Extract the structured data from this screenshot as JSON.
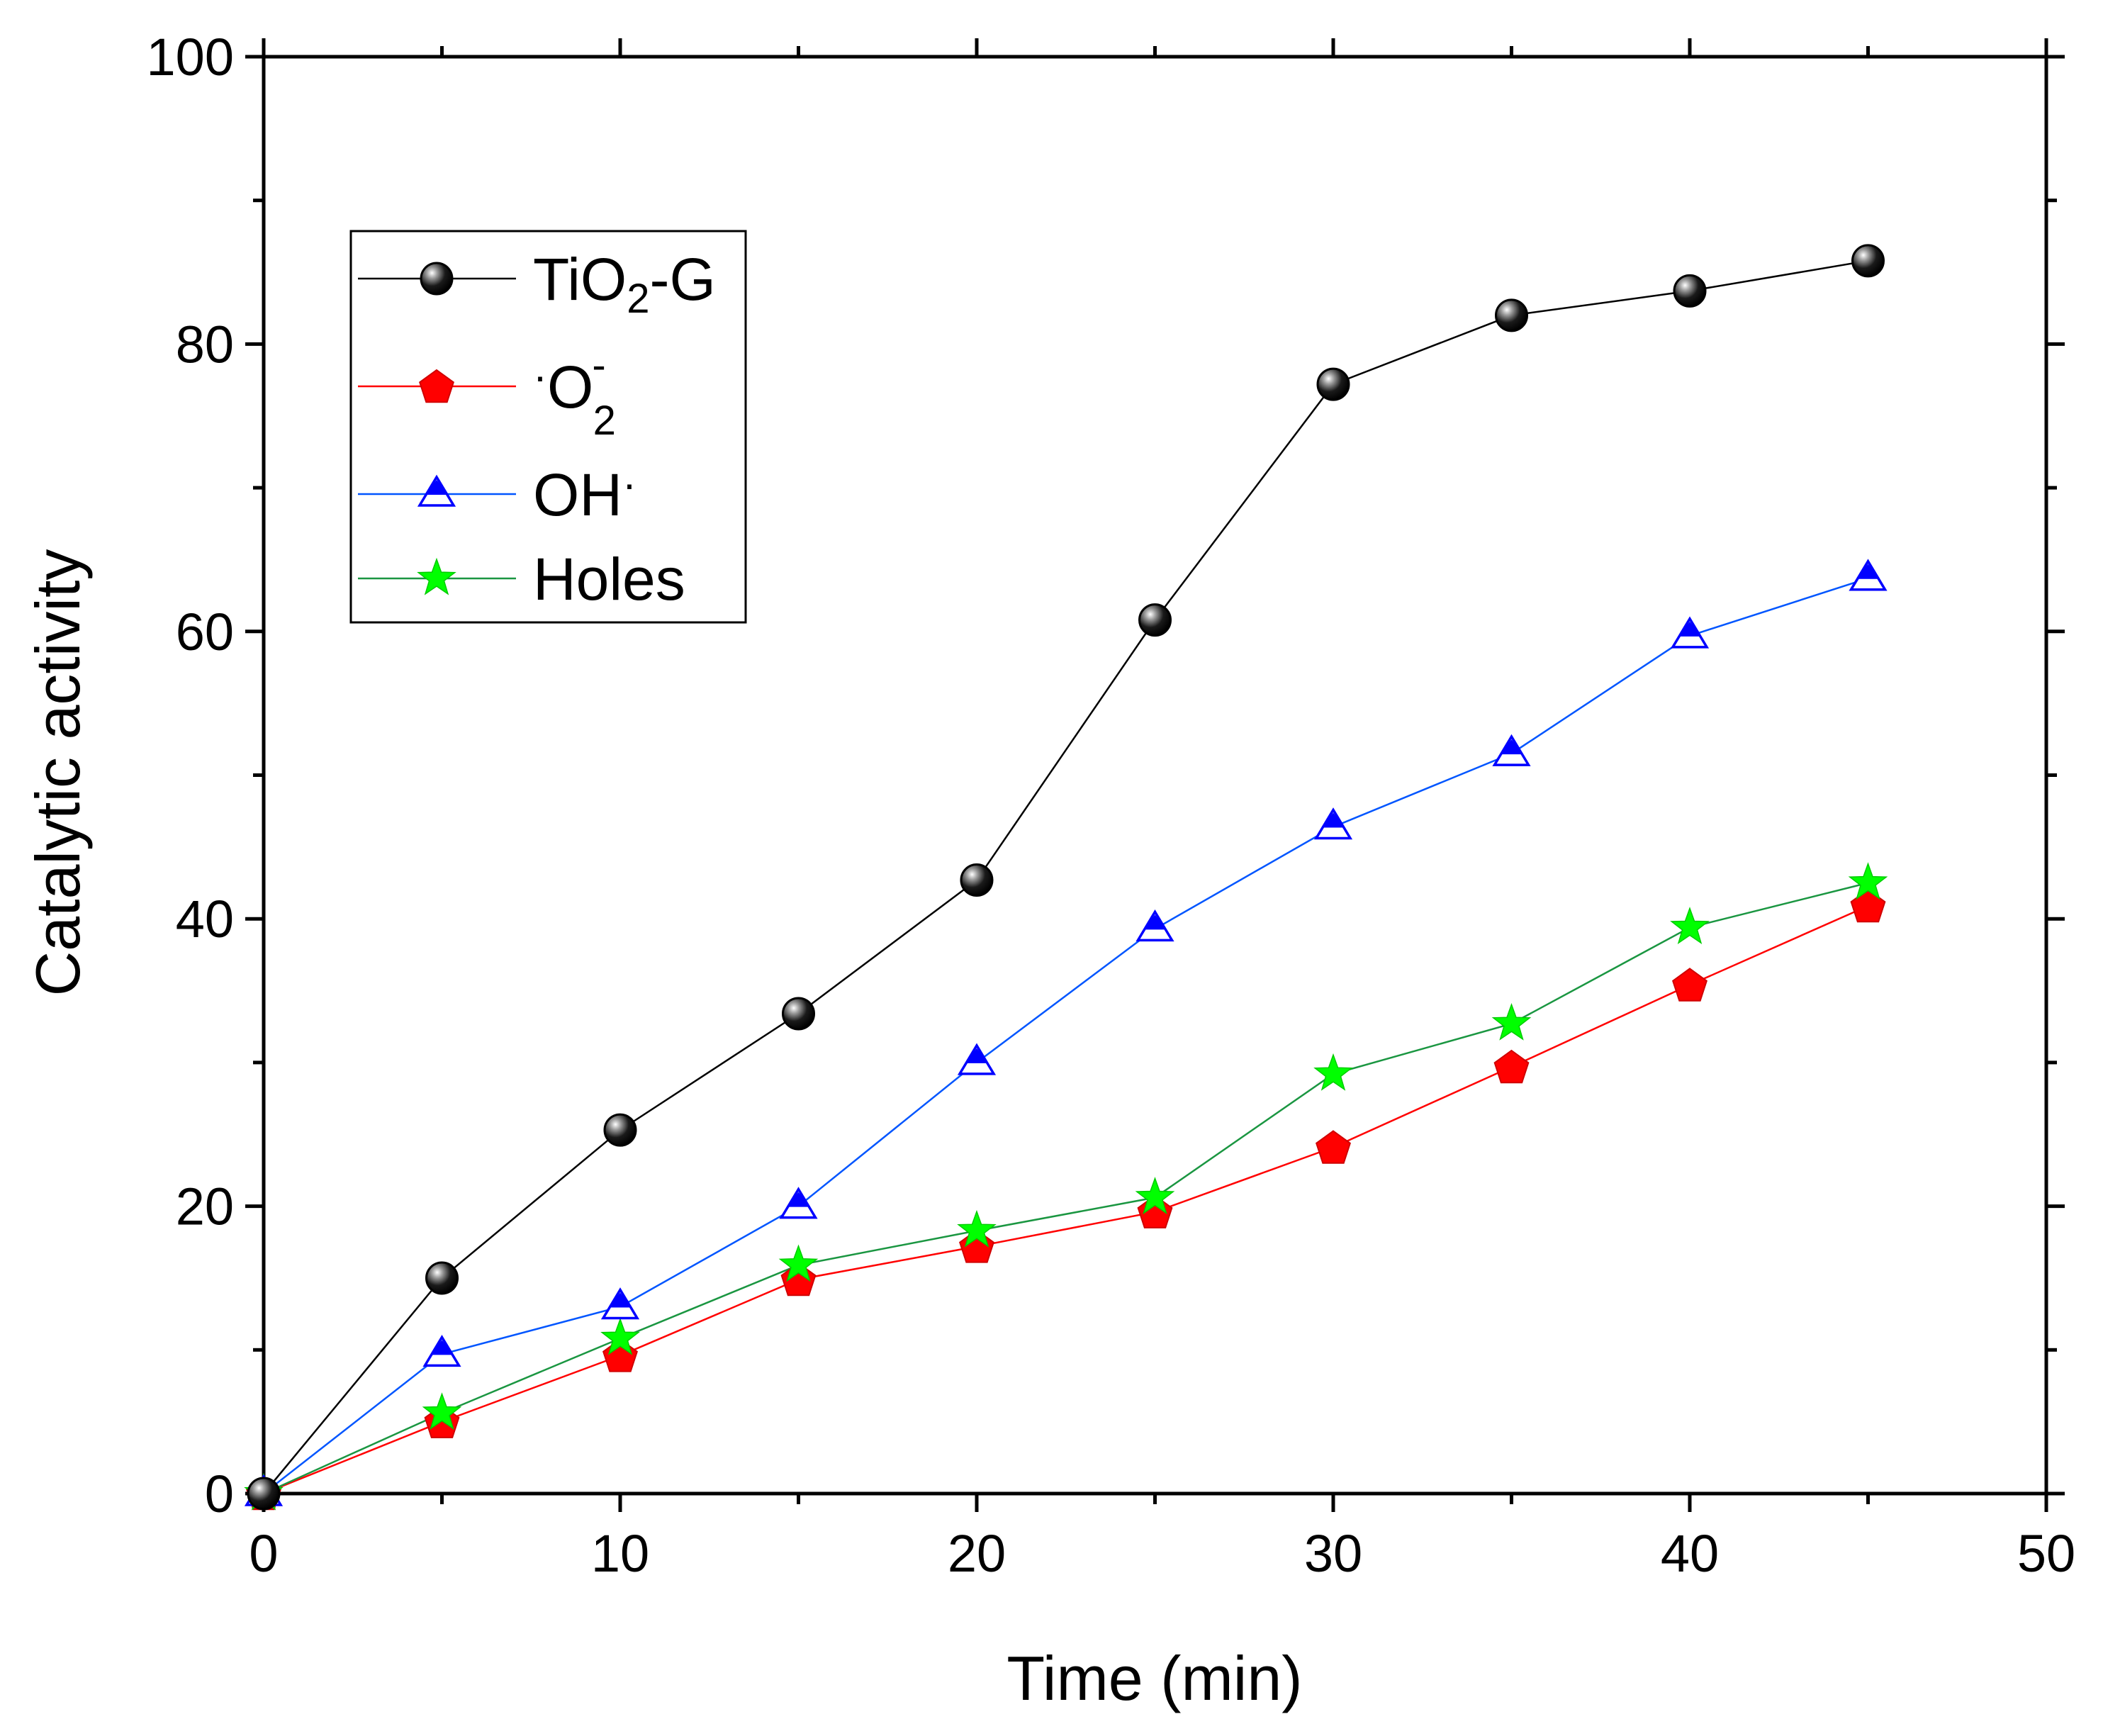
{
  "chart_data": {
    "type": "line",
    "title": "",
    "xlabel": "Time (min)",
    "ylabel": "Catalytic activity",
    "xlim": [
      0,
      50
    ],
    "ylim": [
      0,
      100
    ],
    "xticks": [
      0,
      10,
      20,
      30,
      40,
      50
    ],
    "yticks": [
      0,
      20,
      40,
      60,
      80,
      100
    ],
    "xtick_labels": [
      "0",
      "10",
      "20",
      "30",
      "40",
      "50"
    ],
    "ytick_labels": [
      "0",
      "20",
      "40",
      "60",
      "80",
      "100"
    ],
    "grid": false,
    "legend_position": "top-left",
    "x": [
      0,
      5,
      10,
      15,
      20,
      25,
      30,
      35,
      40,
      45
    ],
    "series": [
      {
        "name": "TiO2-G",
        "legend_main": "TiO",
        "legend_sub": "2",
        "legend_tail": "-G",
        "color": "#000000",
        "marker": "sphere",
        "marker_color": "#1a1a1a",
        "values": [
          0,
          15.0,
          25.3,
          33.4,
          42.7,
          60.8,
          77.2,
          82.0,
          83.7,
          85.8
        ]
      },
      {
        "name": "·O2-",
        "legend_pre": "·",
        "legend_main": "O",
        "legend_sub": "2",
        "legend_sup": "-",
        "color": "#ff0000",
        "marker": "pentagon",
        "marker_color": "#ff0000",
        "values": [
          0,
          5.0,
          9.6,
          14.9,
          17.2,
          19.6,
          24.1,
          29.7,
          35.4,
          40.9
        ]
      },
      {
        "name": "OH·",
        "legend_main": "OH",
        "legend_post": "·",
        "color": "#0055ff",
        "marker": "triangle",
        "marker_color": "#0000ff",
        "values": [
          0,
          9.7,
          13.0,
          20.0,
          30.0,
          39.3,
          46.4,
          51.5,
          59.7,
          63.7
        ]
      },
      {
        "name": "Holes",
        "legend_main": "Holes",
        "color": "#1a9641",
        "marker": "star",
        "marker_color": "#00ff00",
        "values": [
          0,
          5.6,
          10.8,
          15.9,
          18.3,
          20.6,
          29.2,
          32.7,
          39.4,
          42.5
        ]
      }
    ]
  }
}
